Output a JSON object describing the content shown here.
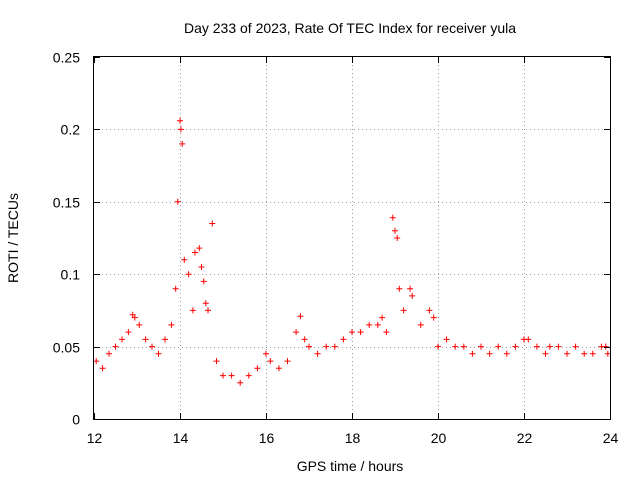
{
  "chart_data": {
    "type": "scatter",
    "title": "Day 233 of 2023, Rate Of TEC Index for receiver yula",
    "xlabel": "GPS time / hours",
    "ylabel": "ROTI / TECUs",
    "xlim": [
      12,
      24
    ],
    "ylim": [
      0,
      0.25
    ],
    "x_ticks": [
      12,
      14,
      16,
      18,
      20,
      22,
      24
    ],
    "x_tick_labels": [
      "12",
      "14",
      "16",
      "18",
      "20",
      "22",
      "24"
    ],
    "y_ticks": [
      0,
      0.05,
      0.1,
      0.15,
      0.2,
      0.25
    ],
    "y_tick_labels": [
      "0",
      "0.05",
      "0.1",
      "0.15",
      "0.2",
      "0.25"
    ],
    "grid": true,
    "marker": "+",
    "color": "#ff0000",
    "series": [
      {
        "name": "ROTI",
        "x": [
          12.05,
          12.2,
          12.35,
          12.5,
          12.65,
          12.8,
          12.9,
          12.95,
          13.05,
          13.2,
          13.35,
          13.5,
          13.65,
          13.8,
          13.9,
          13.95,
          14.0,
          14.02,
          14.05,
          14.1,
          14.2,
          14.3,
          14.35,
          14.45,
          14.5,
          14.55,
          14.6,
          14.65,
          14.75,
          14.85,
          15.0,
          15.2,
          15.4,
          15.6,
          15.8,
          16.0,
          16.1,
          16.3,
          16.5,
          16.7,
          16.8,
          16.9,
          17.0,
          17.2,
          17.4,
          17.6,
          17.8,
          18.0,
          18.2,
          18.4,
          18.6,
          18.7,
          18.8,
          18.95,
          19.0,
          19.05,
          19.1,
          19.2,
          19.35,
          19.4,
          19.6,
          19.8,
          19.9,
          20.0,
          20.2,
          20.4,
          20.6,
          20.8,
          21.0,
          21.2,
          21.4,
          21.6,
          21.8,
          22.0,
          22.1,
          22.3,
          22.5,
          22.6,
          22.8,
          23.0,
          23.2,
          23.4,
          23.6,
          23.8,
          23.9,
          23.95
        ],
        "y": [
          0.04,
          0.035,
          0.045,
          0.05,
          0.055,
          0.06,
          0.072,
          0.07,
          0.065,
          0.055,
          0.05,
          0.045,
          0.055,
          0.065,
          0.09,
          0.15,
          0.206,
          0.2,
          0.19,
          0.11,
          0.1,
          0.075,
          0.115,
          0.118,
          0.105,
          0.095,
          0.08,
          0.075,
          0.135,
          0.04,
          0.03,
          0.03,
          0.025,
          0.03,
          0.035,
          0.045,
          0.04,
          0.035,
          0.04,
          0.06,
          0.071,
          0.055,
          0.05,
          0.045,
          0.05,
          0.05,
          0.055,
          0.06,
          0.06,
          0.065,
          0.065,
          0.07,
          0.06,
          0.139,
          0.13,
          0.125,
          0.09,
          0.075,
          0.09,
          0.085,
          0.065,
          0.075,
          0.07,
          0.05,
          0.055,
          0.05,
          0.05,
          0.045,
          0.05,
          0.045,
          0.05,
          0.045,
          0.05,
          0.055,
          0.055,
          0.05,
          0.045,
          0.05,
          0.05,
          0.045,
          0.05,
          0.045,
          0.045,
          0.05,
          0.05,
          0.045
        ]
      }
    ]
  }
}
